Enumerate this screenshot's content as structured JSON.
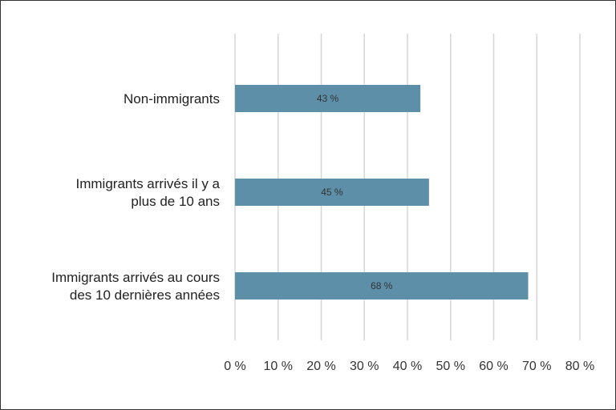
{
  "chart_data": {
    "type": "bar",
    "orientation": "horizontal",
    "categories": [
      [
        "Non-immigrants"
      ],
      [
        "Immigrants arrivés il y a",
        "plus de 10 ans"
      ],
      [
        "Immigrants arrivés au cours",
        "des 10 dernières années"
      ]
    ],
    "values": [
      43,
      45,
      68
    ],
    "data_labels": [
      "43 %",
      "45 %",
      "68 %"
    ],
    "xlim": [
      0,
      80
    ],
    "ticks": [
      0,
      10,
      20,
      30,
      40,
      50,
      60,
      70,
      80
    ],
    "tick_labels": [
      "0 %",
      "10 %",
      "20 %",
      "30 %",
      "40 %",
      "50 %",
      "60 %",
      "70 %",
      "80 %"
    ],
    "grid": true,
    "bar_color": "#5e8fa8"
  }
}
